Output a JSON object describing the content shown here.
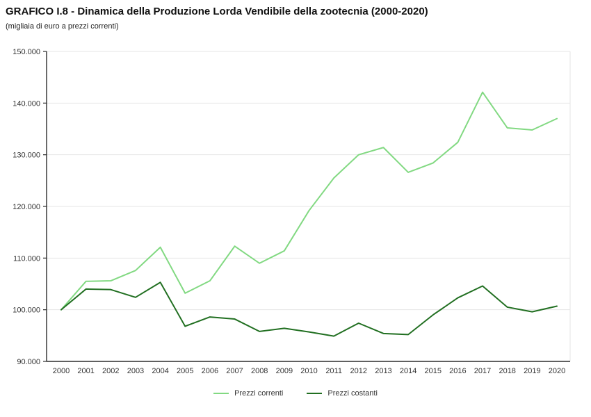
{
  "page": {
    "title": "GRAFICO I.8 - Dinamica della Produzione Lorda Vendibile della zootecnia (2000-2020)",
    "subtitle": "(migliaia di euro a prezzi correnti)"
  },
  "chart_data": {
    "type": "line",
    "title": "GRAFICO I.8 - Dinamica della Produzione Lorda Vendibile della zootecnia (2000-2020)",
    "subtitle": "(migliaia di euro a prezzi correnti)",
    "categories": [
      "2000",
      "2001",
      "2002",
      "2003",
      "2004",
      "2005",
      "2006",
      "2007",
      "2008",
      "2009",
      "2010",
      "2011",
      "2012",
      "2013",
      "2014",
      "2015",
      "2016",
      "2017",
      "2018",
      "2019",
      "2020"
    ],
    "series": [
      {
        "name": "Prezzi correnti",
        "color": "#82d982",
        "values": [
          100000,
          105500,
          105600,
          107600,
          112100,
          103200,
          105600,
          112300,
          109000,
          111400,
          119200,
          125500,
          130000,
          131400,
          126600,
          128400,
          132400,
          142100,
          135200,
          134800,
          137000
        ]
      },
      {
        "name": "Prezzi costanti",
        "color": "#216f21",
        "values": [
          100000,
          104000,
          103900,
          102400,
          105300,
          96800,
          98600,
          98200,
          95800,
          96400,
          95700,
          94900,
          97400,
          95400,
          95200,
          99000,
          102300,
          104600,
          100500,
          99600,
          100700
        ]
      }
    ],
    "ylim": [
      90000,
      150000
    ],
    "ytick_interval": 10000,
    "ytick_labels": [
      "90.000",
      "100.000",
      "110.000",
      "120.000",
      "130.000",
      "140.000",
      "150.000"
    ],
    "xlabel": "",
    "ylabel": "",
    "grid": "horizontal",
    "legend_position": "bottom-center"
  },
  "colors": {
    "axis": "#2b2b2b",
    "grid": "#e4e4e4",
    "tick_text": "#333333"
  }
}
